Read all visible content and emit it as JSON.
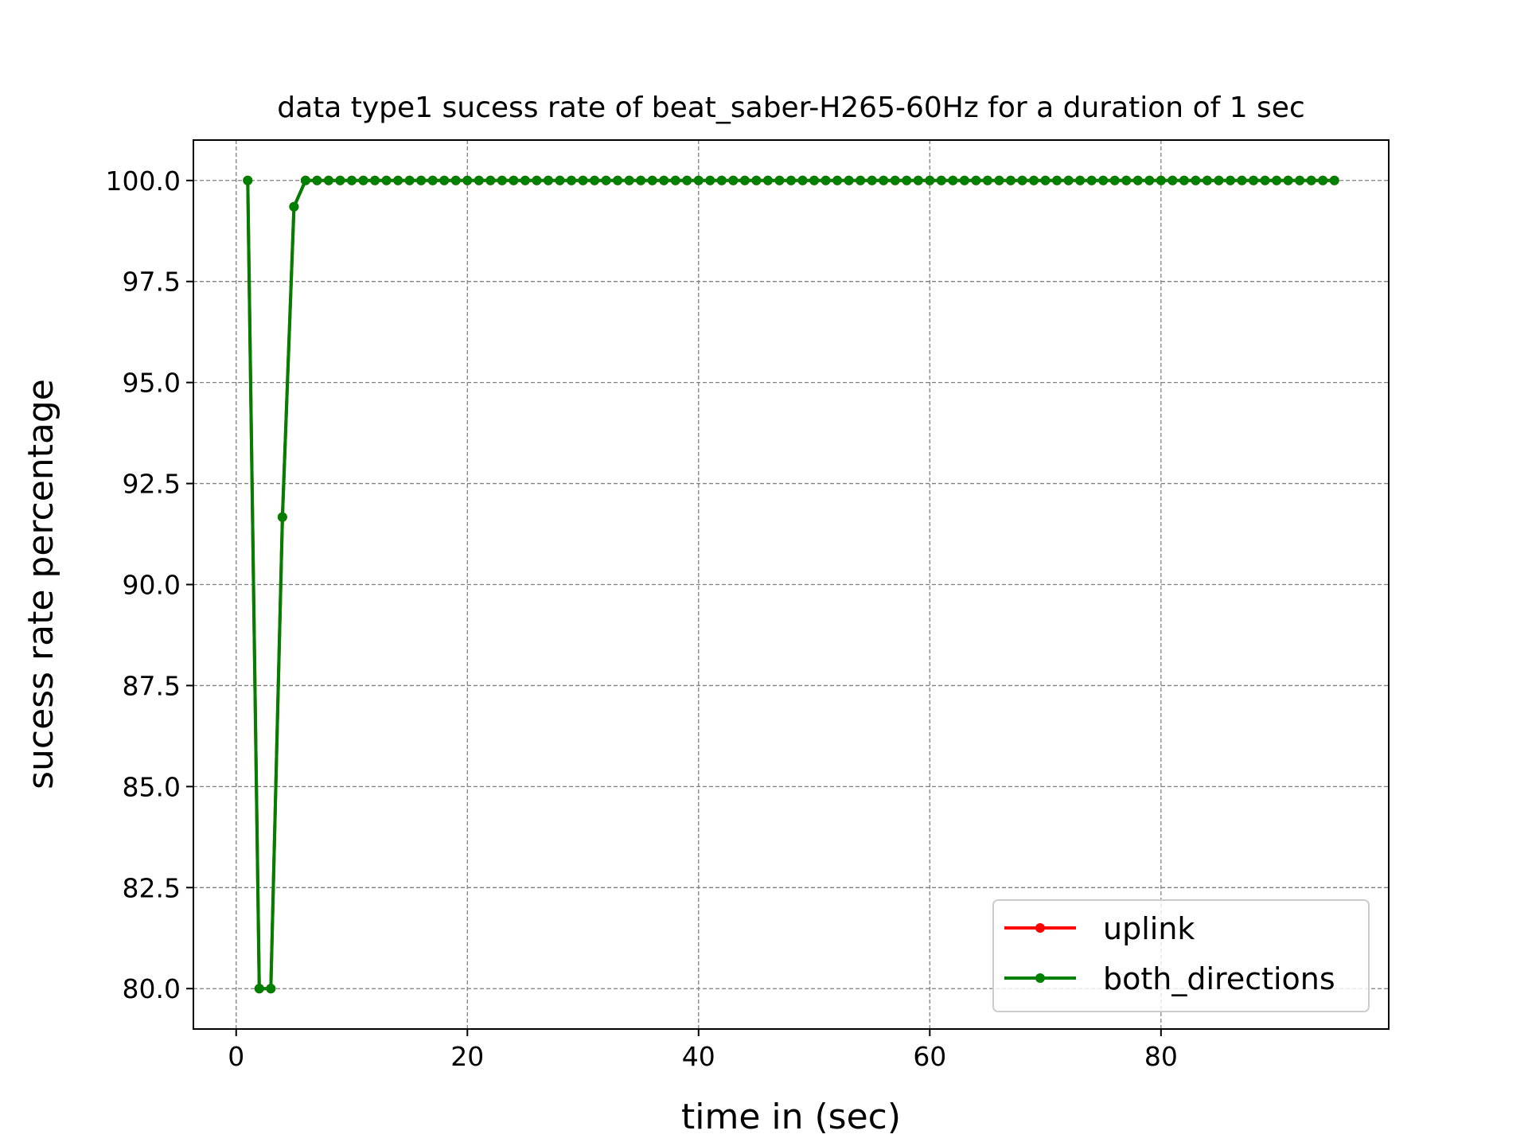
{
  "chart_data": {
    "type": "line",
    "title": "data type1 sucess rate of beat_saber-H265-60Hz for a duration of 1 sec",
    "xlabel": "time in (sec)",
    "ylabel": "sucess rate percentage",
    "xlim": [
      -3.7,
      99.7
    ],
    "ylim": [
      79,
      101
    ],
    "xticks": [
      0,
      20,
      40,
      60,
      80
    ],
    "yticks": [
      80.0,
      82.5,
      85.0,
      87.5,
      90.0,
      92.5,
      95.0,
      97.5,
      100.0
    ],
    "xtick_labels": [
      "0",
      "20",
      "40",
      "60",
      "80"
    ],
    "ytick_labels": [
      "80.0",
      "82.5",
      "85.0",
      "87.5",
      "90.0",
      "92.5",
      "95.0",
      "97.5",
      "100.0"
    ],
    "grid": true,
    "legend_position": "lower-right",
    "series": [
      {
        "name": "uplink",
        "color": "#ff0000",
        "marker": "circle",
        "x": [
          1,
          2,
          3,
          4,
          5,
          6,
          7,
          8,
          9,
          10,
          11,
          12,
          13,
          14,
          15,
          16,
          17,
          18,
          19,
          20,
          21,
          22,
          23,
          24,
          25,
          26,
          27,
          28,
          29,
          30,
          31,
          32,
          33,
          34,
          35,
          36,
          37,
          38,
          39,
          40,
          41,
          42,
          43,
          44,
          45,
          46,
          47,
          48,
          49,
          50,
          51,
          52,
          53,
          54,
          55,
          56,
          57,
          58,
          59,
          60,
          61,
          62,
          63,
          64,
          65,
          66,
          67,
          68,
          69,
          70,
          71,
          72,
          73,
          74,
          75,
          76,
          77,
          78,
          79,
          80,
          81,
          82,
          83,
          84,
          85,
          86,
          87,
          88,
          89,
          90,
          91,
          92,
          93,
          94,
          95
        ],
        "y": [
          100,
          80,
          80,
          91.67,
          99.35,
          100,
          100,
          100,
          100,
          100,
          100,
          100,
          100,
          100,
          100,
          100,
          100,
          100,
          100,
          100,
          100,
          100,
          100,
          100,
          100,
          100,
          100,
          100,
          100,
          100,
          100,
          100,
          100,
          100,
          100,
          100,
          100,
          100,
          100,
          100,
          100,
          100,
          100,
          100,
          100,
          100,
          100,
          100,
          100,
          100,
          100,
          100,
          100,
          100,
          100,
          100,
          100,
          100,
          100,
          100,
          100,
          100,
          100,
          100,
          100,
          100,
          100,
          100,
          100,
          100,
          100,
          100,
          100,
          100,
          100,
          100,
          100,
          100,
          100,
          100,
          100,
          100,
          100,
          100,
          100,
          100,
          100,
          100,
          100,
          100,
          100,
          100,
          100,
          100,
          100
        ]
      },
      {
        "name": "both_directions",
        "color": "#008000",
        "marker": "circle",
        "x": [
          1,
          2,
          3,
          4,
          5,
          6,
          7,
          8,
          9,
          10,
          11,
          12,
          13,
          14,
          15,
          16,
          17,
          18,
          19,
          20,
          21,
          22,
          23,
          24,
          25,
          26,
          27,
          28,
          29,
          30,
          31,
          32,
          33,
          34,
          35,
          36,
          37,
          38,
          39,
          40,
          41,
          42,
          43,
          44,
          45,
          46,
          47,
          48,
          49,
          50,
          51,
          52,
          53,
          54,
          55,
          56,
          57,
          58,
          59,
          60,
          61,
          62,
          63,
          64,
          65,
          66,
          67,
          68,
          69,
          70,
          71,
          72,
          73,
          74,
          75,
          76,
          77,
          78,
          79,
          80,
          81,
          82,
          83,
          84,
          85,
          86,
          87,
          88,
          89,
          90,
          91,
          92,
          93,
          94,
          95
        ],
        "y": [
          100,
          80,
          80,
          91.67,
          99.35,
          100,
          100,
          100,
          100,
          100,
          100,
          100,
          100,
          100,
          100,
          100,
          100,
          100,
          100,
          100,
          100,
          100,
          100,
          100,
          100,
          100,
          100,
          100,
          100,
          100,
          100,
          100,
          100,
          100,
          100,
          100,
          100,
          100,
          100,
          100,
          100,
          100,
          100,
          100,
          100,
          100,
          100,
          100,
          100,
          100,
          100,
          100,
          100,
          100,
          100,
          100,
          100,
          100,
          100,
          100,
          100,
          100,
          100,
          100,
          100,
          100,
          100,
          100,
          100,
          100,
          100,
          100,
          100,
          100,
          100,
          100,
          100,
          100,
          100,
          100,
          100,
          100,
          100,
          100,
          100,
          100,
          100,
          100,
          100,
          100,
          100,
          100,
          100,
          100,
          100
        ]
      }
    ]
  }
}
